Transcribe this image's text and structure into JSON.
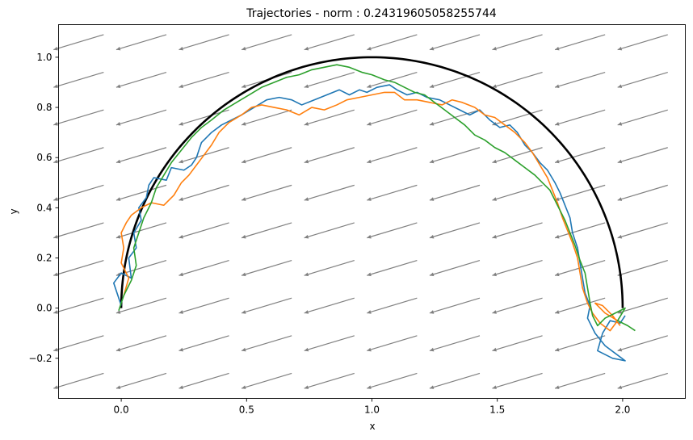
{
  "chart_data": {
    "type": "line",
    "title": "Trajectories - norm : 0.24319605058255744",
    "xlabel": "x",
    "ylabel": "y",
    "xlim": [
      -0.25,
      2.25
    ],
    "ylim": [
      -0.36,
      1.13
    ],
    "xticks": [
      0.0,
      0.5,
      1.0,
      1.5,
      2.0
    ],
    "xtick_labels": [
      "0.0",
      "0.5",
      "1.0",
      "1.5",
      "2.0"
    ],
    "yticks": [
      -0.2,
      0.0,
      0.2,
      0.4,
      0.6,
      0.8,
      1.0
    ],
    "ytick_labels": [
      "−0.2",
      "0.0",
      "0.2",
      "0.4",
      "0.6",
      "0.8",
      "1.0"
    ],
    "grid": false,
    "reference_curve": {
      "shape": "semicircle",
      "center": [
        1.0,
        0.0
      ],
      "radius": 1.0,
      "color": "#000000"
    },
    "vector_field": {
      "color": "#808080",
      "direction": [
        -0.2,
        -0.06
      ],
      "x": [
        -0.17,
        0.08,
        0.33,
        0.58,
        0.83,
        1.08,
        1.33,
        1.58,
        1.83,
        2.08
      ],
      "y": [
        -0.29,
        -0.14,
        0.01,
        0.16,
        0.31,
        0.46,
        0.61,
        0.76,
        0.91,
        1.06
      ]
    },
    "series": [
      {
        "color": "#1f77b4",
        "points": [
          [
            0.0,
            0.01
          ],
          [
            -0.03,
            0.1
          ],
          [
            0.0,
            0.14
          ],
          [
            0.04,
            0.12
          ],
          [
            0.03,
            0.2
          ],
          [
            0.06,
            0.24
          ],
          [
            0.05,
            0.3
          ],
          [
            0.08,
            0.35
          ],
          [
            0.07,
            0.4
          ],
          [
            0.1,
            0.44
          ],
          [
            0.11,
            0.49
          ],
          [
            0.13,
            0.52
          ],
          [
            0.18,
            0.51
          ],
          [
            0.2,
            0.56
          ],
          [
            0.25,
            0.55
          ],
          [
            0.28,
            0.57
          ],
          [
            0.3,
            0.6
          ],
          [
            0.32,
            0.66
          ],
          [
            0.36,
            0.7
          ],
          [
            0.4,
            0.73
          ],
          [
            0.44,
            0.75
          ],
          [
            0.48,
            0.77
          ],
          [
            0.53,
            0.8
          ],
          [
            0.58,
            0.83
          ],
          [
            0.63,
            0.84
          ],
          [
            0.68,
            0.83
          ],
          [
            0.72,
            0.81
          ],
          [
            0.77,
            0.83
          ],
          [
            0.82,
            0.85
          ],
          [
            0.87,
            0.87
          ],
          [
            0.91,
            0.85
          ],
          [
            0.95,
            0.87
          ],
          [
            0.98,
            0.86
          ],
          [
            1.02,
            0.88
          ],
          [
            1.07,
            0.89
          ],
          [
            1.1,
            0.87
          ],
          [
            1.14,
            0.85
          ],
          [
            1.18,
            0.86
          ],
          [
            1.22,
            0.84
          ],
          [
            1.27,
            0.83
          ],
          [
            1.31,
            0.81
          ],
          [
            1.35,
            0.79
          ],
          [
            1.39,
            0.77
          ],
          [
            1.43,
            0.79
          ],
          [
            1.47,
            0.75
          ],
          [
            1.51,
            0.72
          ],
          [
            1.55,
            0.73
          ],
          [
            1.58,
            0.7
          ],
          [
            1.61,
            0.65
          ],
          [
            1.64,
            0.62
          ],
          [
            1.67,
            0.58
          ],
          [
            1.7,
            0.55
          ],
          [
            1.73,
            0.5
          ],
          [
            1.75,
            0.46
          ],
          [
            1.77,
            0.41
          ],
          [
            1.79,
            0.36
          ],
          [
            1.8,
            0.3
          ],
          [
            1.82,
            0.24
          ],
          [
            1.83,
            0.18
          ],
          [
            1.84,
            0.12
          ],
          [
            1.85,
            0.06
          ],
          [
            1.87,
            0.01
          ],
          [
            1.86,
            -0.04
          ],
          [
            1.89,
            -0.1
          ],
          [
            1.93,
            -0.15
          ],
          [
            1.97,
            -0.18
          ],
          [
            2.01,
            -0.21
          ],
          [
            1.96,
            -0.2
          ],
          [
            1.9,
            -0.17
          ],
          [
            1.92,
            -0.1
          ],
          [
            1.95,
            -0.05
          ],
          [
            1.99,
            -0.06
          ],
          [
            2.01,
            -0.03
          ]
        ]
      },
      {
        "color": "#ff7f0e",
        "points": [
          [
            0.01,
            0.05
          ],
          [
            0.03,
            0.12
          ],
          [
            0.0,
            0.18
          ],
          [
            0.01,
            0.24
          ],
          [
            0.0,
            0.3
          ],
          [
            0.02,
            0.34
          ],
          [
            0.04,
            0.37
          ],
          [
            0.08,
            0.4
          ],
          [
            0.12,
            0.42
          ],
          [
            0.17,
            0.41
          ],
          [
            0.21,
            0.45
          ],
          [
            0.24,
            0.5
          ],
          [
            0.27,
            0.53
          ],
          [
            0.3,
            0.57
          ],
          [
            0.33,
            0.61
          ],
          [
            0.36,
            0.65
          ],
          [
            0.39,
            0.7
          ],
          [
            0.43,
            0.74
          ],
          [
            0.48,
            0.77
          ],
          [
            0.52,
            0.8
          ],
          [
            0.56,
            0.81
          ],
          [
            0.61,
            0.8
          ],
          [
            0.66,
            0.79
          ],
          [
            0.71,
            0.77
          ],
          [
            0.76,
            0.8
          ],
          [
            0.81,
            0.79
          ],
          [
            0.86,
            0.81
          ],
          [
            0.9,
            0.83
          ],
          [
            0.95,
            0.84
          ],
          [
            1.0,
            0.85
          ],
          [
            1.05,
            0.86
          ],
          [
            1.09,
            0.86
          ],
          [
            1.13,
            0.83
          ],
          [
            1.18,
            0.83
          ],
          [
            1.23,
            0.82
          ],
          [
            1.28,
            0.81
          ],
          [
            1.32,
            0.83
          ],
          [
            1.36,
            0.82
          ],
          [
            1.41,
            0.8
          ],
          [
            1.45,
            0.77
          ],
          [
            1.49,
            0.76
          ],
          [
            1.53,
            0.73
          ],
          [
            1.57,
            0.7
          ],
          [
            1.61,
            0.66
          ],
          [
            1.64,
            0.62
          ],
          [
            1.67,
            0.57
          ],
          [
            1.7,
            0.52
          ],
          [
            1.72,
            0.47
          ],
          [
            1.74,
            0.42
          ],
          [
            1.76,
            0.36
          ],
          [
            1.78,
            0.31
          ],
          [
            1.8,
            0.26
          ],
          [
            1.82,
            0.2
          ],
          [
            1.83,
            0.14
          ],
          [
            1.84,
            0.08
          ],
          [
            1.86,
            0.02
          ],
          [
            1.88,
            -0.02
          ],
          [
            1.91,
            -0.06
          ],
          [
            1.95,
            -0.09
          ],
          [
            1.98,
            -0.05
          ],
          [
            1.93,
            -0.02
          ],
          [
            1.89,
            0.02
          ],
          [
            1.92,
            0.01
          ],
          [
            1.96,
            -0.03
          ],
          [
            1.99,
            -0.07
          ]
        ]
      },
      {
        "color": "#2ca02c",
        "points": [
          [
            -0.01,
            -0.01
          ],
          [
            0.01,
            0.05
          ],
          [
            0.04,
            0.11
          ],
          [
            0.06,
            0.17
          ],
          [
            0.05,
            0.24
          ],
          [
            0.07,
            0.3
          ],
          [
            0.09,
            0.36
          ],
          [
            0.12,
            0.42
          ],
          [
            0.14,
            0.48
          ],
          [
            0.17,
            0.53
          ],
          [
            0.2,
            0.58
          ],
          [
            0.24,
            0.63
          ],
          [
            0.28,
            0.68
          ],
          [
            0.32,
            0.72
          ],
          [
            0.36,
            0.75
          ],
          [
            0.41,
            0.79
          ],
          [
            0.46,
            0.82
          ],
          [
            0.51,
            0.85
          ],
          [
            0.56,
            0.88
          ],
          [
            0.61,
            0.9
          ],
          [
            0.66,
            0.92
          ],
          [
            0.71,
            0.93
          ],
          [
            0.76,
            0.95
          ],
          [
            0.81,
            0.96
          ],
          [
            0.86,
            0.97
          ],
          [
            0.91,
            0.96
          ],
          [
            0.96,
            0.94
          ],
          [
            1.0,
            0.93
          ],
          [
            1.05,
            0.91
          ],
          [
            1.09,
            0.9
          ],
          [
            1.13,
            0.88
          ],
          [
            1.17,
            0.86
          ],
          [
            1.21,
            0.85
          ],
          [
            1.25,
            0.82
          ],
          [
            1.29,
            0.79
          ],
          [
            1.33,
            0.76
          ],
          [
            1.37,
            0.73
          ],
          [
            1.41,
            0.69
          ],
          [
            1.45,
            0.67
          ],
          [
            1.49,
            0.64
          ],
          [
            1.53,
            0.62
          ],
          [
            1.57,
            0.59
          ],
          [
            1.61,
            0.56
          ],
          [
            1.65,
            0.53
          ],
          [
            1.68,
            0.5
          ],
          [
            1.71,
            0.47
          ],
          [
            1.73,
            0.43
          ],
          [
            1.75,
            0.39
          ],
          [
            1.77,
            0.35
          ],
          [
            1.79,
            0.3
          ],
          [
            1.81,
            0.25
          ],
          [
            1.83,
            0.19
          ],
          [
            1.85,
            0.14
          ],
          [
            1.86,
            0.08
          ],
          [
            1.87,
            0.02
          ],
          [
            1.88,
            -0.03
          ],
          [
            1.9,
            -0.07
          ],
          [
            1.93,
            -0.04
          ],
          [
            1.97,
            -0.02
          ],
          [
            2.01,
            0.0
          ],
          [
            1.98,
            -0.05
          ],
          [
            2.02,
            -0.07
          ],
          [
            2.05,
            -0.09
          ]
        ]
      }
    ]
  }
}
